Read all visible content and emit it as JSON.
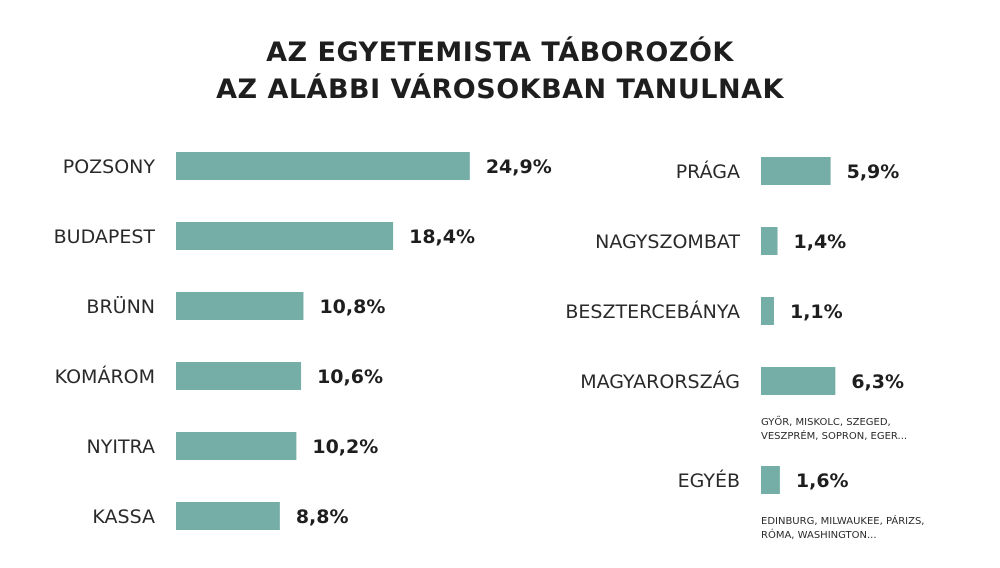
{
  "chart_data": {
    "type": "bar",
    "title_lines": [
      "AZ EGYETEMISTA TÁBOROZÓK",
      "AZ ALÁBBI VÁROSOKBAN TANULNAK"
    ],
    "unit": "%",
    "bar_color": "#75aea6",
    "groups": [
      {
        "categories": [
          "POZSONY",
          "BUDAPEST",
          "BRÜNN",
          "KOMÁROM",
          "NYITRA",
          "KASSA"
        ],
        "values": [
          24.9,
          18.4,
          10.8,
          10.6,
          10.2,
          8.8
        ],
        "labels": [
          "24,9%",
          "18,4%",
          "10,8%",
          "10,6%",
          "10,2%",
          "8,8%"
        ]
      },
      {
        "categories": [
          "PRÁGA",
          "NAGYSZOMBAT",
          "BESZTERCEBÁNYA",
          "MAGYARORSZÁG",
          "EGYÉB"
        ],
        "values": [
          5.9,
          1.4,
          1.1,
          6.3,
          1.6
        ],
        "labels": [
          "5,9%",
          "1,4%",
          "1,1%",
          "6,3%",
          "1,6%"
        ]
      }
    ],
    "annotations": [
      {
        "category": "MAGYARORSZÁG",
        "lines": [
          "GYŐR, MISKOLC, SZEGED,",
          "VESZPRÉM, SOPRON, EGER..."
        ]
      },
      {
        "category": "EGYÉB",
        "lines": [
          "EDINBURG, MILWAUKEE, PÁRIZS,",
          "RÓMA, WASHINGTON..."
        ]
      }
    ]
  }
}
